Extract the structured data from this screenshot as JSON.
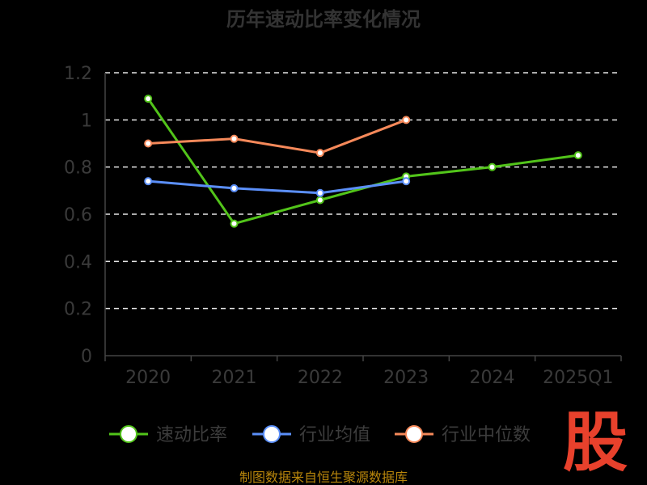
{
  "page": {
    "source_text": "制图数据来自恒生聚源数据库",
    "logo_text": "股"
  },
  "chart_data": {
    "type": "line",
    "title": "历年速动比率变化情况",
    "categories": [
      "2020",
      "2021",
      "2022",
      "2023",
      "2024",
      "2025Q1"
    ],
    "ylim": [
      0,
      1.2
    ],
    "yticks": [
      "0",
      "0.2",
      "0.4",
      "0.6",
      "0.8",
      "1",
      "1.2"
    ],
    "grid": true,
    "legend_position": "bottom",
    "series": [
      {
        "name": "速动比率",
        "color": "#52c41a",
        "values": [
          1.09,
          0.56,
          0.66,
          0.76,
          0.8,
          0.85
        ]
      },
      {
        "name": "行业均值",
        "color": "#5b8ff9",
        "values": [
          0.74,
          0.71,
          0.69,
          0.74,
          null,
          null
        ]
      },
      {
        "name": "行业中位数",
        "color": "#f6895a",
        "values": [
          0.9,
          0.92,
          0.86,
          1.0,
          null,
          null
        ]
      }
    ]
  }
}
